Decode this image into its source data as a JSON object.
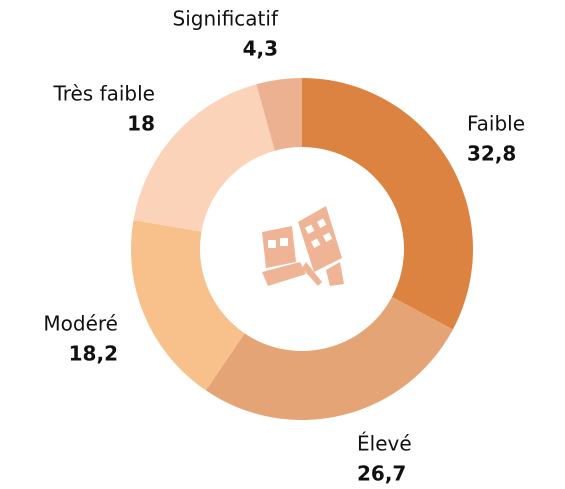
{
  "chart_data": {
    "type": "pie",
    "categories": [
      "Faible",
      "Élevé",
      "Modéré",
      "Très faible",
      "Significatif"
    ],
    "values": [
      32.8,
      26.7,
      18.2,
      18,
      4.3
    ],
    "value_labels": [
      "32,8",
      "26,7",
      "18,2",
      "18",
      "4,3"
    ],
    "colors": [
      "#dc8342",
      "#e5a476",
      "#f8c08a",
      "#fbd3b8",
      "#ebb190"
    ]
  }
}
